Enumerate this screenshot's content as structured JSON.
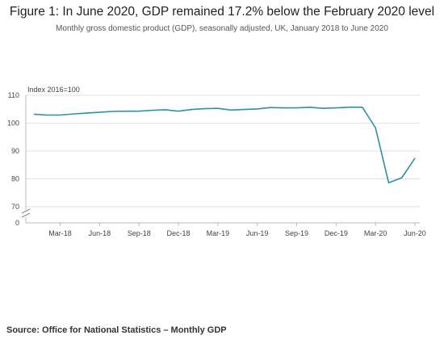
{
  "chart_data": {
    "type": "line",
    "title": "Figure 1: In June 2020, GDP remained 17.2% below the February 2020 level",
    "subtitle": "Monthly gross domestic product (GDP), seasonally adjusted, UK, January 2018 to June 2020",
    "ylabel": "Index 2016=100",
    "ylim": [
      70,
      110
    ],
    "y_ticks": [
      "110",
      "100",
      "90",
      "80",
      "70"
    ],
    "y_zero_label": "0",
    "y_axis_break": true,
    "grid": "horizontal",
    "line_color": "#2e8fa6",
    "x_ticks": [
      "Mar-18",
      "Jun-18",
      "Sep-18",
      "Dec-18",
      "Mar-19",
      "Jun-19",
      "Sep-19",
      "Dec-19",
      "Mar-20",
      "Jun-20"
    ],
    "x": [
      "Jan-18",
      "Feb-18",
      "Mar-18",
      "Apr-18",
      "May-18",
      "Jun-18",
      "Jul-18",
      "Aug-18",
      "Sep-18",
      "Oct-18",
      "Nov-18",
      "Dec-18",
      "Jan-19",
      "Feb-19",
      "Mar-19",
      "Apr-19",
      "May-19",
      "Jun-19",
      "Jul-19",
      "Aug-19",
      "Sep-19",
      "Oct-19",
      "Nov-19",
      "Dec-19",
      "Jan-20",
      "Feb-20",
      "Mar-20",
      "Apr-20",
      "May-20",
      "Jun-20"
    ],
    "values": [
      103.2,
      102.9,
      102.9,
      103.3,
      103.6,
      103.9,
      104.2,
      104.3,
      104.3,
      104.6,
      104.8,
      104.3,
      104.9,
      105.2,
      105.3,
      104.7,
      104.9,
      105.1,
      105.6,
      105.5,
      105.5,
      105.7,
      105.3,
      105.5,
      105.7,
      105.7,
      98.3,
      78.6,
      80.4,
      87.4
    ]
  },
  "source": "Source: Office for National Statistics – Monthly GDP"
}
